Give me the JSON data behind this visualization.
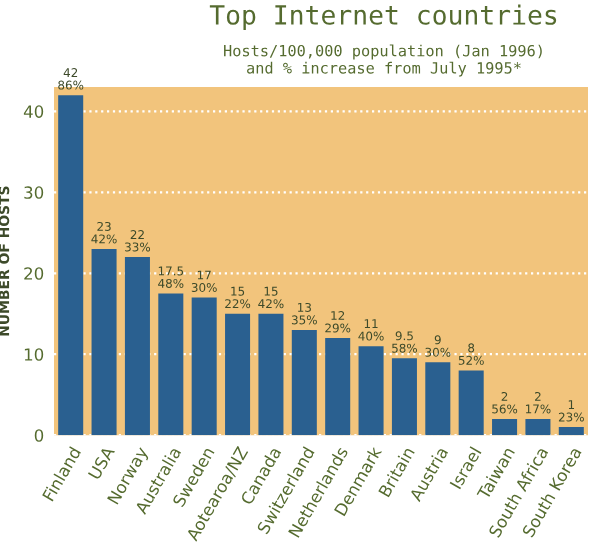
{
  "chart_data": {
    "type": "bar",
    "title": "Top Internet countries",
    "subtitle": "Hosts/100,000 population (Jan 1996)\nand % increase from July 1995*",
    "ylabel": "NUMBER OF HOSTS",
    "categories": [
      "Finland",
      "USA",
      "Norway",
      "Australia",
      "Sweden",
      "Aotearoa/NZ",
      "Canada",
      "Switzerland",
      "Netherlands",
      "Denmark",
      "Britain",
      "Austria",
      "Israel",
      "Taiwan",
      "South Africa",
      "South Korea"
    ],
    "values": [
      42,
      23,
      22,
      17.5,
      17,
      15,
      15,
      13,
      12,
      11,
      9.5,
      9,
      8,
      2,
      2,
      1
    ],
    "value_labels": [
      "42\n86%",
      "23\n42%",
      "22\n33%",
      "17.5\n48%",
      "17\n30%",
      "15\n22%",
      "15\n42%",
      "13\n35%",
      "12\n29%",
      "11\n40%",
      "9.5\n58%",
      "9\n30%",
      "8\n52%",
      "2\n56%",
      "2\n17%",
      "1\n23%"
    ],
    "color": "#2a6090",
    "ylim": [
      0,
      43
    ],
    "yticks": [
      0,
      10,
      20,
      30,
      40
    ],
    "grid": "y"
  }
}
